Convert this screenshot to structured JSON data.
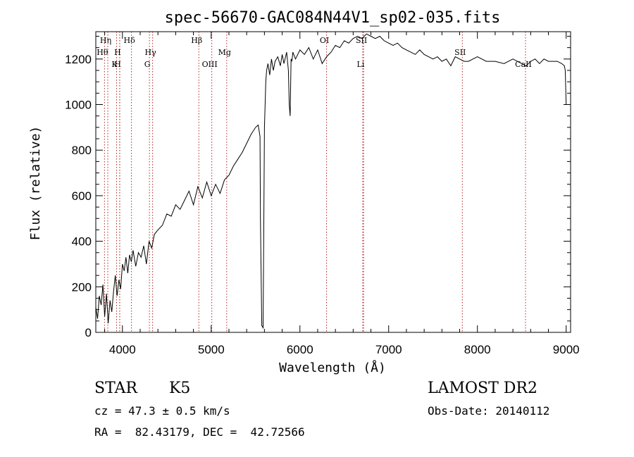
{
  "chart_data": {
    "type": "line",
    "title": "spec-56670-GAC084N44V1_sp02-035.fits",
    "xlabel": "Wavelength (Å)",
    "ylabel": "Flux (relative)",
    "xlim": [
      3700,
      9050
    ],
    "ylim": [
      0,
      1320
    ],
    "xticks": [
      4000,
      5000,
      6000,
      7000,
      8000,
      9000
    ],
    "xtick_labels": [
      "4000",
      "5000",
      "6000",
      "7000",
      "8000",
      "9000"
    ],
    "yticks": [
      0,
      200,
      400,
      600,
      800,
      1000,
      1200
    ],
    "ytick_labels": [
      "0",
      "200",
      "400",
      "600",
      "800",
      "1000",
      "1200"
    ],
    "grid": false,
    "series": [
      {
        "x": [
          3700,
          3720,
          3740,
          3760,
          3780,
          3800,
          3820,
          3840,
          3860,
          3880,
          3900,
          3920,
          3940,
          3960,
          3980,
          4000,
          4020,
          4040,
          4060,
          4080,
          4100,
          4120,
          4150,
          4180,
          4210,
          4240,
          4270,
          4300,
          4330,
          4360,
          4400,
          4450,
          4500,
          4550,
          4600,
          4650,
          4700,
          4750,
          4800,
          4850,
          4900,
          4950,
          5000,
          5050,
          5100,
          5150,
          5200,
          5250,
          5300,
          5350,
          5400,
          5450,
          5500,
          5530,
          5550,
          5555,
          5570,
          5585,
          5600,
          5615,
          5625,
          5640,
          5660,
          5680,
          5700,
          5720,
          5750,
          5780,
          5800,
          5820,
          5850,
          5870,
          5880,
          5890,
          5900,
          5910,
          5920,
          5950,
          6000,
          6050,
          6100,
          6150,
          6200,
          6250,
          6300,
          6350,
          6400,
          6450,
          6500,
          6550,
          6600,
          6650,
          6700,
          6750,
          6800,
          6850,
          6900,
          6950,
          7000,
          7050,
          7100,
          7150,
          7200,
          7250,
          7300,
          7350,
          7400,
          7450,
          7500,
          7550,
          7600,
          7650,
          7700,
          7750,
          7800,
          7850,
          7900,
          7950,
          8000,
          8100,
          8200,
          8300,
          8400,
          8500,
          8550,
          8600,
          8650,
          8700,
          8750,
          8800,
          8850,
          8900,
          8950,
          8980,
          8990,
          9000
        ],
        "y": [
          110,
          60,
          160,
          120,
          210,
          70,
          170,
          40,
          140,
          90,
          180,
          250,
          160,
          230,
          190,
          300,
          270,
          330,
          260,
          340,
          310,
          360,
          290,
          350,
          330,
          380,
          300,
          400,
          370,
          430,
          450,
          470,
          520,
          510,
          560,
          540,
          580,
          620,
          560,
          640,
          590,
          660,
          600,
          650,
          610,
          670,
          690,
          730,
          760,
          790,
          830,
          870,
          900,
          910,
          860,
          500,
          30,
          20,
          900,
          1100,
          1150,
          1180,
          1130,
          1200,
          1150,
          1190,
          1210,
          1170,
          1220,
          1180,
          1230,
          1150,
          1000,
          950,
          1200,
          1190,
          1230,
          1200,
          1240,
          1220,
          1250,
          1200,
          1240,
          1180,
          1210,
          1230,
          1260,
          1250,
          1280,
          1270,
          1290,
          1300,
          1290,
          1310,
          1300,
          1290,
          1300,
          1280,
          1270,
          1260,
          1270,
          1250,
          1240,
          1230,
          1220,
          1240,
          1220,
          1210,
          1200,
          1210,
          1190,
          1200,
          1170,
          1210,
          1200,
          1190,
          1190,
          1200,
          1210,
          1190,
          1190,
          1180,
          1200,
          1180,
          1170,
          1190,
          1200,
          1180,
          1200,
          1190,
          1190,
          1190,
          1180,
          1170,
          1150,
          1000
        ]
      }
    ],
    "lines": [
      {
        "wl": 3798,
        "label": "Hθ",
        "row": 2
      },
      {
        "wl": 3835,
        "label": "Hη",
        "row": 1
      },
      {
        "wl": 3934,
        "label": "K",
        "row": 3
      },
      {
        "wl": 3969,
        "label": "H",
        "row": 2
      },
      {
        "wl": 3970,
        "label": "H",
        "row": 3
      },
      {
        "wl": 4102,
        "label": "Hδ",
        "row": 1
      },
      {
        "wl": 4304,
        "label": "G",
        "row": 3
      },
      {
        "wl": 4340,
        "label": "Hγ",
        "row": 2
      },
      {
        "wl": 4861,
        "label": "Hβ",
        "row": 1
      },
      {
        "wl": 5007,
        "label": "OIII",
        "row": 3
      },
      {
        "wl": 5175,
        "label": "Mg",
        "row": 2
      },
      {
        "wl": 6300,
        "label": "OI",
        "row": 1
      },
      {
        "wl": 6708,
        "label": "Li",
        "row": 3
      },
      {
        "wl": 6717,
        "label": "SII",
        "row": 1
      },
      {
        "wl": 7830,
        "label": "SII",
        "row": 2
      },
      {
        "wl": 8542,
        "label": "CaII",
        "row": 3
      }
    ]
  },
  "info": {
    "class": "STAR",
    "subclass": "K5",
    "survey": "LAMOST DR2",
    "cz": "cz = 47.3 ± 0.5 km/s",
    "obs_date": "Obs-Date: 20140112",
    "radec": "RA =  82.43179, DEC =  42.72566"
  },
  "colors": {
    "spectrum": "#000000",
    "marker_lines": "#b22222",
    "axes": "#000000"
  }
}
